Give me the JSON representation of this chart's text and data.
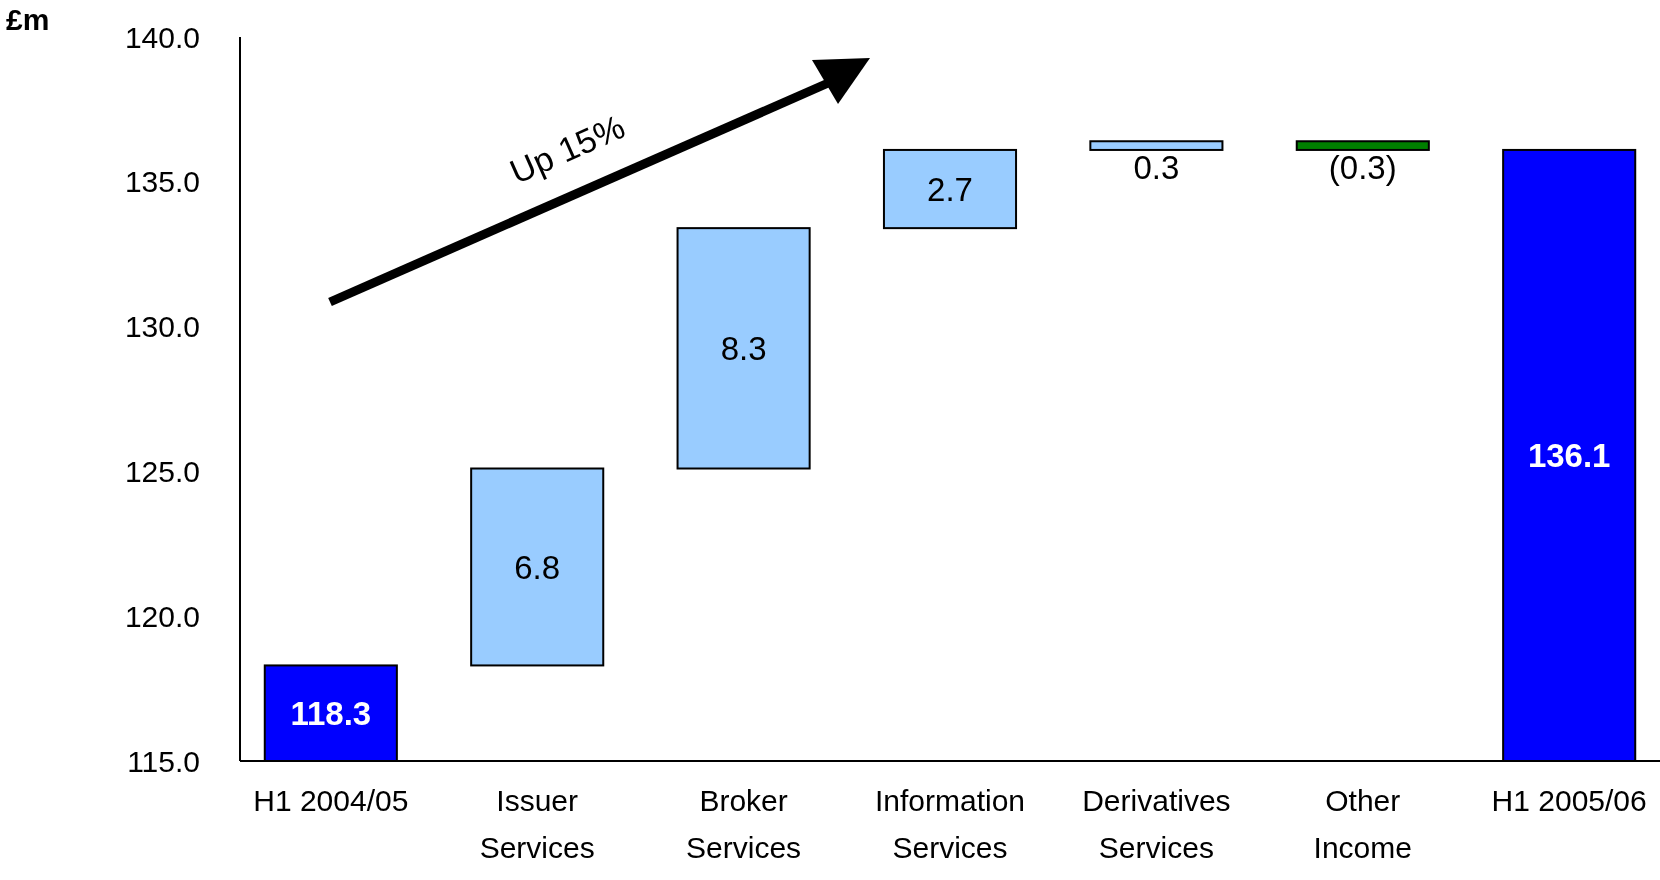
{
  "chart_data": {
    "type": "bar",
    "ylabel": "£m",
    "categories": [
      "H1 2004/05",
      "Issuer Services",
      "Broker Services",
      "Information Services",
      "Derivatives Services",
      "Other Income",
      "H1 2005/06"
    ],
    "values": [
      118.3,
      6.8,
      8.3,
      2.7,
      0.3,
      -0.3,
      136.1
    ],
    "base": [
      null,
      118.3,
      125.1,
      133.4,
      136.1,
      136.4,
      null
    ],
    "colors": [
      "#0000ff",
      "#99ccff",
      "#99ccff",
      "#99ccff",
      "#99ccff",
      "#008000",
      "#0000ff"
    ],
    "value_labels": [
      "118.3",
      "6.8",
      "8.3",
      "2.7",
      "0.3",
      "(0.3)",
      "136.1"
    ],
    "ylim": [
      115,
      140
    ],
    "yticks": [
      {
        "value": 115,
        "label": "115.0"
      },
      {
        "value": 120,
        "label": "120.0"
      },
      {
        "value": 125,
        "label": "125.0"
      },
      {
        "value": 130,
        "label": "130.0"
      },
      {
        "value": 135,
        "label": "135.0"
      },
      {
        "value": 140,
        "label": "140.0"
      }
    ],
    "annotations": [
      "Up 15%"
    ]
  }
}
